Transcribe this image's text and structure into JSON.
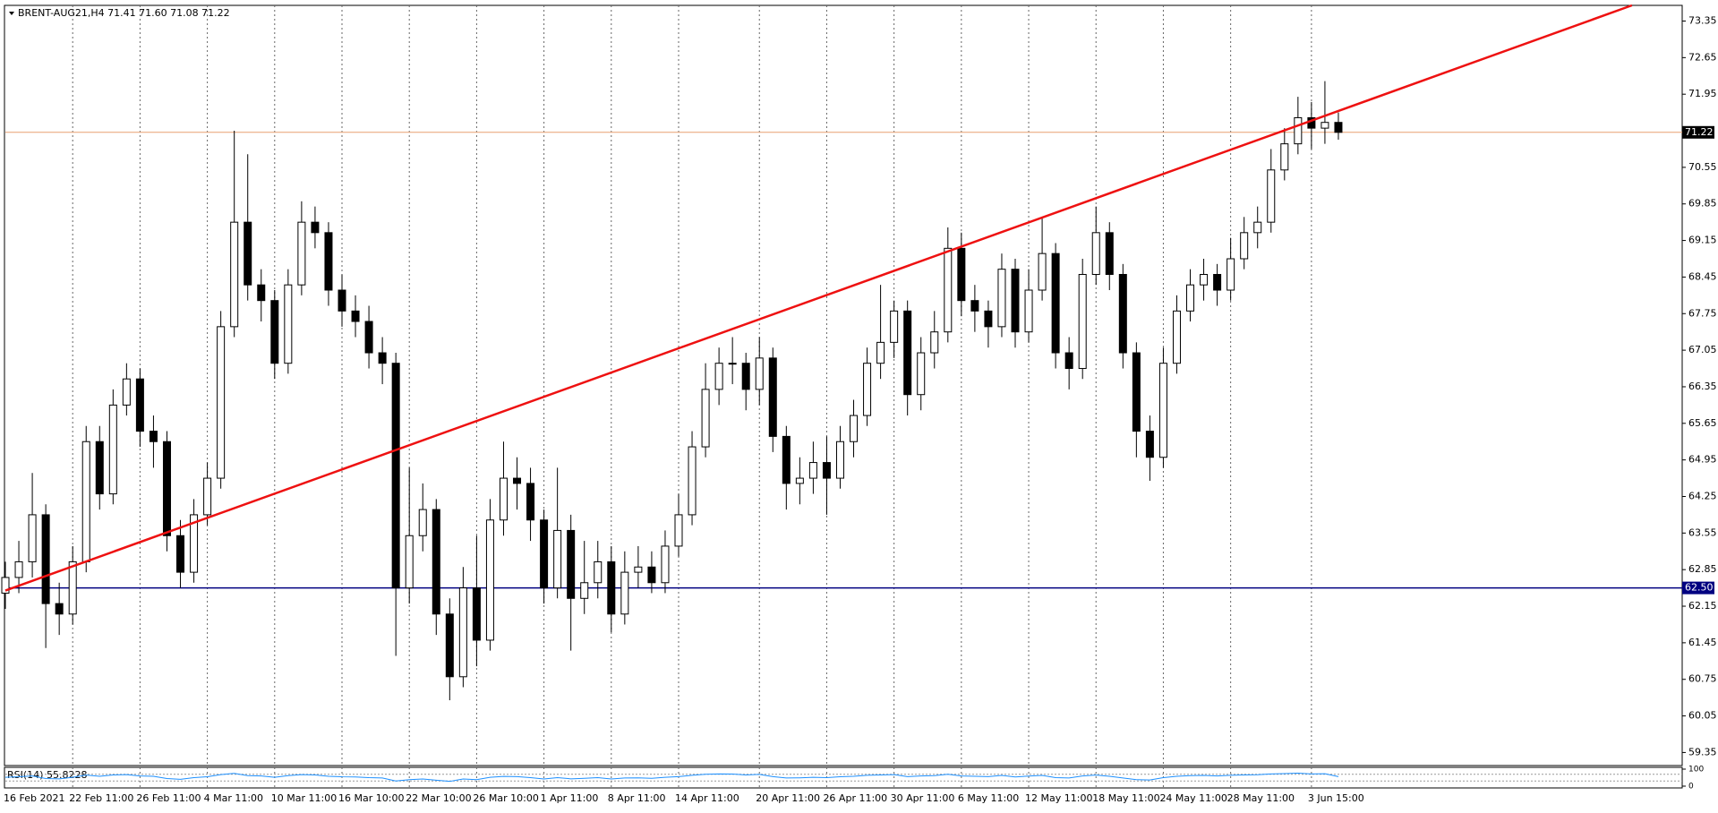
{
  "chart_data": {
    "type": "candlestick",
    "title": "BRENT-AUG21,H4  71.41 71.60 71.08 71.22",
    "categories": [
      "16 Feb 2021",
      null,
      null,
      null,
      null,
      "22 Feb 11:00",
      null,
      null,
      null,
      null,
      "26 Feb 11:00",
      null,
      null,
      null,
      null,
      "4 Mar 11:00",
      null,
      null,
      null,
      null,
      "10 Mar 11:00",
      null,
      null,
      null,
      null,
      "16 Mar 10:00",
      null,
      null,
      null,
      null,
      "22 Mar 10:00",
      null,
      null,
      null,
      null,
      "26 Mar 10:00",
      null,
      null,
      null,
      null,
      "1 Apr 11:00",
      null,
      null,
      null,
      null,
      "8 Apr 11:00",
      null,
      null,
      null,
      null,
      "14 Apr 11:00",
      null,
      null,
      null,
      null,
      null,
      "20 Apr 11:00",
      null,
      null,
      null,
      null,
      "26 Apr 11:00",
      null,
      null,
      null,
      null,
      "30 Apr 11:00",
      null,
      null,
      null,
      null,
      "6 May 11:00",
      null,
      null,
      null,
      null,
      "12 May 11:00",
      null,
      null,
      null,
      null,
      "18 May 11:00",
      null,
      null,
      null,
      null,
      "24 May 11:00",
      null,
      null,
      null,
      null,
      "28 May 11:00",
      null,
      null,
      null,
      null,
      null,
      "3 Jun 15:00",
      null,
      null
    ],
    "ohlc": [
      [
        62.4,
        63.0,
        62.1,
        62.7
      ],
      [
        62.7,
        63.4,
        62.4,
        63.0
      ],
      [
        63.0,
        64.7,
        62.7,
        63.9
      ],
      [
        63.9,
        64.1,
        61.35,
        62.2
      ],
      [
        62.2,
        62.6,
        61.6,
        62.0
      ],
      [
        62.0,
        63.3,
        61.8,
        63.0
      ],
      [
        63.0,
        65.6,
        62.8,
        65.3
      ],
      [
        65.3,
        65.6,
        64.0,
        64.3
      ],
      [
        64.3,
        66.3,
        64.1,
        66.0
      ],
      [
        66.0,
        66.8,
        65.8,
        66.5
      ],
      [
        66.5,
        66.7,
        65.2,
        65.5
      ],
      [
        65.5,
        65.8,
        64.8,
        65.3
      ],
      [
        65.3,
        65.5,
        63.2,
        63.5
      ],
      [
        63.5,
        63.8,
        62.5,
        62.8
      ],
      [
        62.8,
        64.2,
        62.6,
        63.9
      ],
      [
        63.9,
        64.9,
        63.7,
        64.6
      ],
      [
        64.6,
        67.8,
        64.4,
        67.5
      ],
      [
        67.5,
        71.25,
        67.3,
        69.5
      ],
      [
        69.5,
        70.8,
        68.0,
        68.3
      ],
      [
        68.3,
        68.6,
        67.6,
        68.0
      ],
      [
        68.0,
        68.2,
        66.5,
        66.8
      ],
      [
        66.8,
        68.6,
        66.6,
        68.3
      ],
      [
        68.3,
        69.9,
        68.1,
        69.5
      ],
      [
        69.5,
        69.8,
        69.0,
        69.3
      ],
      [
        69.3,
        69.5,
        67.9,
        68.2
      ],
      [
        68.2,
        68.5,
        67.5,
        67.8
      ],
      [
        67.8,
        68.1,
        67.3,
        67.6
      ],
      [
        67.6,
        67.9,
        66.7,
        67.0
      ],
      [
        67.0,
        67.3,
        66.4,
        66.8
      ],
      [
        66.8,
        67.0,
        61.2,
        62.5
      ],
      [
        62.5,
        64.8,
        62.2,
        63.5
      ],
      [
        63.5,
        64.5,
        63.2,
        64.0
      ],
      [
        64.0,
        64.2,
        61.6,
        62.0
      ],
      [
        62.0,
        62.3,
        60.35,
        60.8
      ],
      [
        60.8,
        62.9,
        60.6,
        62.5
      ],
      [
        62.5,
        63.5,
        61.0,
        61.5
      ],
      [
        61.5,
        64.2,
        61.3,
        63.8
      ],
      [
        63.8,
        65.3,
        63.5,
        64.6
      ],
      [
        64.6,
        65.0,
        64.0,
        64.5
      ],
      [
        64.5,
        64.8,
        63.4,
        63.8
      ],
      [
        63.8,
        64.0,
        62.2,
        62.5
      ],
      [
        62.5,
        64.8,
        62.3,
        63.6
      ],
      [
        63.6,
        63.9,
        61.3,
        62.3
      ],
      [
        62.3,
        63.4,
        62.0,
        62.6
      ],
      [
        62.6,
        63.4,
        62.3,
        63.0
      ],
      [
        63.0,
        63.3,
        61.65,
        62.0
      ],
      [
        62.0,
        63.2,
        61.8,
        62.8
      ],
      [
        62.8,
        63.3,
        62.5,
        62.9
      ],
      [
        62.9,
        63.2,
        62.4,
        62.6
      ],
      [
        62.6,
        63.6,
        62.4,
        63.3
      ],
      [
        63.3,
        64.3,
        63.1,
        63.9
      ],
      [
        63.9,
        65.5,
        63.7,
        65.2
      ],
      [
        65.2,
        66.8,
        65.0,
        66.3
      ],
      [
        66.3,
        67.1,
        66.0,
        66.8
      ],
      [
        66.8,
        67.3,
        66.4,
        66.8
      ],
      [
        66.8,
        67.0,
        65.9,
        66.3
      ],
      [
        66.3,
        67.3,
        66.0,
        66.9
      ],
      [
        66.9,
        67.1,
        65.1,
        65.4
      ],
      [
        65.4,
        65.6,
        64.0,
        64.5
      ],
      [
        64.5,
        65.0,
        64.1,
        64.6
      ],
      [
        64.6,
        65.3,
        64.3,
        64.9
      ],
      [
        64.9,
        65.4,
        63.9,
        64.6
      ],
      [
        64.6,
        65.6,
        64.4,
        65.3
      ],
      [
        65.3,
        66.1,
        65.0,
        65.8
      ],
      [
        65.8,
        67.1,
        65.6,
        66.8
      ],
      [
        66.8,
        68.3,
        66.5,
        67.2
      ],
      [
        67.2,
        68.0,
        66.9,
        67.8
      ],
      [
        67.8,
        68.0,
        65.8,
        66.2
      ],
      [
        66.2,
        67.3,
        65.9,
        67.0
      ],
      [
        67.0,
        67.8,
        66.7,
        67.4
      ],
      [
        67.4,
        69.4,
        67.2,
        69.0
      ],
      [
        69.0,
        69.3,
        67.7,
        68.0
      ],
      [
        68.0,
        68.3,
        67.4,
        67.8
      ],
      [
        67.8,
        68.0,
        67.1,
        67.5
      ],
      [
        67.5,
        68.9,
        67.3,
        68.6
      ],
      [
        68.6,
        68.8,
        67.1,
        67.4
      ],
      [
        67.4,
        68.6,
        67.2,
        68.2
      ],
      [
        68.2,
        69.6,
        68.0,
        68.9
      ],
      [
        68.9,
        69.1,
        66.7,
        67.0
      ],
      [
        67.0,
        67.3,
        66.3,
        66.7
      ],
      [
        66.7,
        68.8,
        66.5,
        68.5
      ],
      [
        68.5,
        69.8,
        68.3,
        69.3
      ],
      [
        69.3,
        69.5,
        68.2,
        68.5
      ],
      [
        68.5,
        68.7,
        66.7,
        67.0
      ],
      [
        67.0,
        67.2,
        65.0,
        65.5
      ],
      [
        65.5,
        65.8,
        64.55,
        65.0
      ],
      [
        65.0,
        67.1,
        64.8,
        66.8
      ],
      [
        66.8,
        68.1,
        66.6,
        67.8
      ],
      [
        67.8,
        68.6,
        67.6,
        68.3
      ],
      [
        68.3,
        68.8,
        68.0,
        68.5
      ],
      [
        68.5,
        68.7,
        67.9,
        68.2
      ],
      [
        68.2,
        69.2,
        68.0,
        68.8
      ],
      [
        68.8,
        69.6,
        68.6,
        69.3
      ],
      [
        69.3,
        69.8,
        69.0,
        69.5
      ],
      [
        69.5,
        70.9,
        69.3,
        70.5
      ],
      [
        70.5,
        71.3,
        70.3,
        71.0
      ],
      [
        71.0,
        71.9,
        70.8,
        71.5
      ],
      [
        71.5,
        71.8,
        70.9,
        71.3
      ],
      [
        71.3,
        72.2,
        71.0,
        71.41
      ],
      [
        71.41,
        71.6,
        71.08,
        71.22
      ]
    ],
    "up_color": "#ffffff",
    "down_color": "#000000",
    "candle_outline": "#000000",
    "ylim": [
      59.1,
      73.65
    ],
    "yticks": [
      73.35,
      72.65,
      71.95,
      70.55,
      69.85,
      69.15,
      68.45,
      67.75,
      67.05,
      66.35,
      65.65,
      64.95,
      64.25,
      63.55,
      62.85,
      62.15,
      61.45,
      60.75,
      60.05,
      59.35
    ],
    "hlines": [
      {
        "value": 71.22,
        "color": "#e8a070",
        "box_color": "#000000"
      },
      {
        "value": 62.5,
        "label": "62.50",
        "color": "#000080",
        "box_color": "#000080"
      }
    ],
    "trendline": {
      "x": [
        0,
        120.8
      ],
      "y": [
        62.45,
        73.65
      ],
      "color": "#ee1111"
    },
    "x_grid": true,
    "rsi": {
      "label": "RSI(14)",
      "color": "#1e90ff",
      "ylim": [
        0,
        100
      ],
      "yticks": [
        100,
        0
      ],
      "levels": [
        70,
        30
      ],
      "values": [
        52,
        55,
        60,
        45,
        43,
        52,
        65,
        58,
        66,
        68,
        60,
        58,
        45,
        40,
        50,
        55,
        68,
        75,
        62,
        60,
        52,
        62,
        68,
        66,
        58,
        55,
        54,
        50,
        48,
        30,
        38,
        42,
        35,
        28,
        42,
        38,
        52,
        57,
        56,
        50,
        42,
        50,
        43,
        46,
        50,
        42,
        48,
        49,
        46,
        52,
        56,
        64,
        70,
        72,
        71,
        66,
        69,
        56,
        48,
        49,
        52,
        50,
        55,
        58,
        64,
        66,
        68,
        56,
        60,
        62,
        70,
        60,
        58,
        56,
        63,
        54,
        59,
        63,
        50,
        48,
        60,
        65,
        58,
        48,
        38,
        36,
        50,
        58,
        62,
        63,
        60,
        64,
        66,
        67,
        72,
        74,
        76,
        72,
        73,
        55.8228
      ]
    }
  }
}
